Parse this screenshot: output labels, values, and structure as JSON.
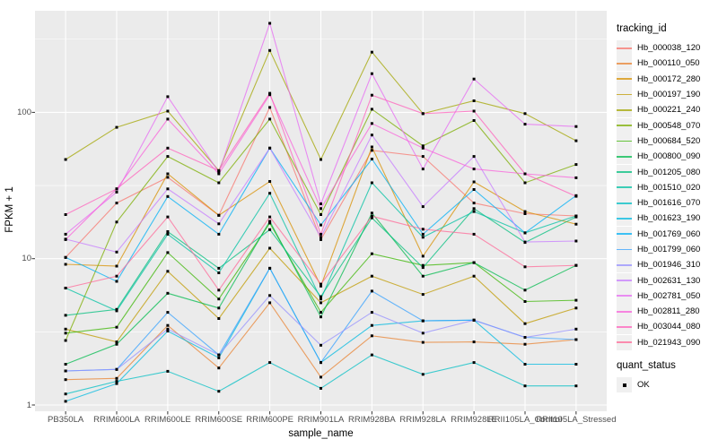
{
  "chart_data": {
    "type": "line",
    "title": "",
    "xlabel": "sample_name",
    "ylabel": "FPKM + 1",
    "yscale": "log10",
    "ylim": [
      0.9,
      500
    ],
    "y_ticks": [
      {
        "label": "1",
        "value": 1
      },
      {
        "label": "10",
        "value": 10
      },
      {
        "label": "100",
        "value": 100
      }
    ],
    "minor_gridlines": [
      3.162,
      31.62,
      316.2
    ],
    "grid": true,
    "panel_bg": "#ebebeb",
    "grid_color": "#ffffff",
    "tick_text_color": "#4d4d4d",
    "point_color": "#000000",
    "legend_position": "right",
    "legend_title": "tracking_id",
    "legend2": {
      "title": "quant_status",
      "items": [
        "OK"
      ]
    },
    "categories": [
      "PB350LA",
      "RRIM600LA",
      "RRIM600LE",
      "RRIM600SE",
      "RRIM600PE",
      "RRIM901LA",
      "RRIM928BA",
      "RRIM928LA",
      "RRIM928LE",
      "RRII105LA_Control",
      "RRII105LA_Stressed"
    ],
    "series": [
      {
        "name": "Hb_000038_120",
        "color": "#F8766D",
        "values": [
          10.2,
          24,
          36,
          19.8,
          108,
          13.5,
          55,
          50,
          24,
          20.3,
          19.6
        ]
      },
      {
        "name": "Hb_000110_050",
        "color": "#EA8331",
        "values": [
          1.49,
          1.52,
          3.5,
          1.79,
          5.0,
          1.55,
          2.97,
          2.68,
          2.7,
          2.6,
          2.8
        ]
      },
      {
        "name": "Hb_000172_280",
        "color": "#D89000",
        "values": [
          9.15,
          8.9,
          38,
          19.8,
          33.7,
          6.5,
          58,
          10.4,
          33.5,
          21,
          17.2
        ]
      },
      {
        "name": "Hb_000197_190",
        "color": "#C09B00",
        "values": [
          3.3,
          2.7,
          8.2,
          3.9,
          11.8,
          5.0,
          7.6,
          5.7,
          7.6,
          3.6,
          4.6
        ]
      },
      {
        "name": "Hb_000221_240",
        "color": "#A3A500",
        "values": [
          47.6,
          79,
          102,
          40,
          265,
          47.6,
          258,
          98,
          120,
          98,
          64
        ]
      },
      {
        "name": "Hb_000548_070",
        "color": "#7CAE00",
        "values": [
          2.76,
          17.8,
          50,
          33,
          90,
          20,
          105,
          59,
          88,
          33,
          44
        ]
      },
      {
        "name": "Hb_000684_520",
        "color": "#39B600",
        "values": [
          3.1,
          3.4,
          11,
          5.3,
          17.5,
          4.3,
          10.8,
          9.0,
          9.4,
          5.1,
          5.2
        ]
      },
      {
        "name": "Hb_000800_090",
        "color": "#00BB4E",
        "values": [
          1.9,
          2.6,
          5.8,
          4.6,
          18,
          4.0,
          20.5,
          7.6,
          9.4,
          6.1,
          9.0
        ]
      },
      {
        "name": "Hb_001205_080",
        "color": "#00BF7D",
        "values": [
          4.1,
          4.5,
          15.3,
          8.6,
          15.8,
          5.5,
          19,
          8.7,
          22,
          12.9,
          19.3
        ]
      },
      {
        "name": "Hb_001510_020",
        "color": "#00C1A3",
        "values": [
          6.3,
          4.4,
          14.7,
          8.0,
          28,
          5.3,
          33,
          14.0,
          21,
          15,
          19.6
        ]
      },
      {
        "name": "Hb_001616_070",
        "color": "#00BFC4",
        "values": [
          1.19,
          1.45,
          1.7,
          1.24,
          1.95,
          1.3,
          2.2,
          1.62,
          1.95,
          1.35,
          1.35
        ]
      },
      {
        "name": "Hb_001623_190",
        "color": "#00BAE0",
        "values": [
          1.06,
          1.4,
          3.2,
          2.1,
          8.6,
          1.95,
          3.5,
          3.76,
          3.8,
          1.9,
          1.9
        ]
      },
      {
        "name": "Hb_001769_060",
        "color": "#00B0F6",
        "values": [
          10.2,
          7.0,
          26.6,
          14.7,
          57,
          17,
          48,
          14.7,
          29.7,
          15,
          27
        ]
      },
      {
        "name": "Hb_001799_060",
        "color": "#35A2FF",
        "values": [
          1.71,
          1.75,
          4.3,
          2.2,
          8.6,
          1.95,
          6.0,
          3.76,
          3.8,
          2.9,
          2.8
        ]
      },
      {
        "name": "Hb_001946_310",
        "color": "#9590FF",
        "values": [
          1.71,
          1.75,
          3.3,
          2.2,
          5.6,
          2.56,
          4.3,
          3.1,
          3.8,
          2.9,
          3.3
        ]
      },
      {
        "name": "Hb_002631_130",
        "color": "#C77CFF",
        "values": [
          13.6,
          11.1,
          30,
          17.3,
          57,
          14,
          70,
          22.7,
          50,
          13,
          13.2
        ]
      },
      {
        "name": "Hb_002781_050",
        "color": "#E76BF3",
        "values": [
          14.7,
          28.5,
          128,
          39,
          406,
          23.7,
          184,
          41,
          169,
          83,
          80
        ]
      },
      {
        "name": "Hb_002811_280",
        "color": "#FA62DB",
        "values": [
          13.5,
          30,
          90,
          38,
          132,
          22,
          84,
          57,
          41,
          38,
          35.7
        ]
      },
      {
        "name": "Hb_003044_080",
        "color": "#FF62BC",
        "values": [
          20,
          30,
          57,
          40,
          135,
          14.7,
          131,
          98,
          102,
          38,
          26.7
        ]
      },
      {
        "name": "Hb_021943_090",
        "color": "#FF6A98",
        "values": [
          6.3,
          7.6,
          19.3,
          6.1,
          19.3,
          6.7,
          19.5,
          15.9,
          14.7,
          8.8,
          9.0
        ]
      }
    ]
  }
}
